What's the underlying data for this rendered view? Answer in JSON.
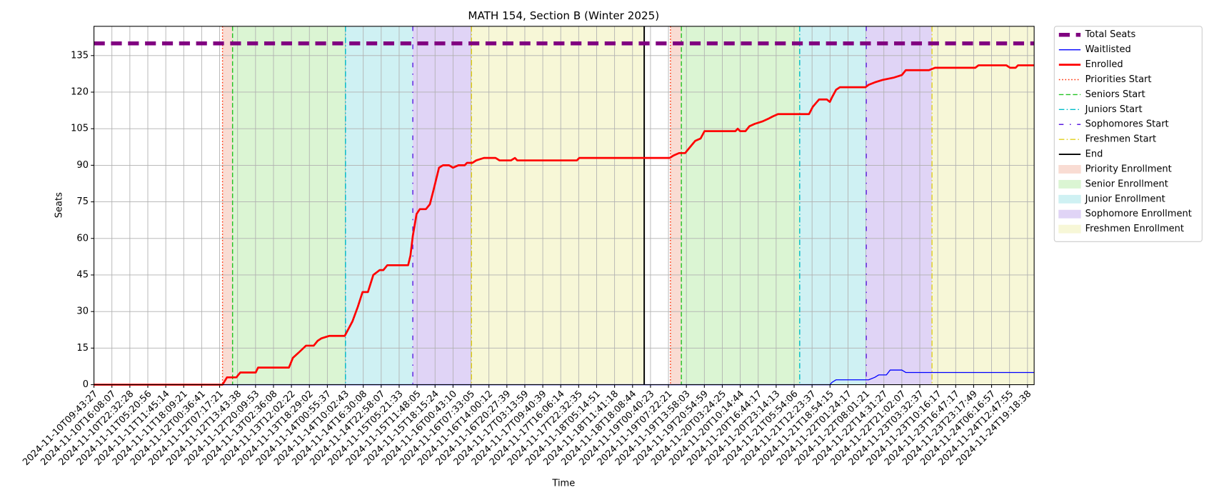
{
  "chart_data": {
    "type": "line",
    "title": "MATH 154, Section B (Winter 2025)",
    "x_label": "Time",
    "y_label": "Seats",
    "xlim": [
      0,
      52.37
    ],
    "ylim": [
      0,
      147
    ],
    "yticks": [
      0,
      15,
      30,
      45,
      60,
      75,
      90,
      105,
      120,
      135
    ],
    "xticks": [
      {
        "value": 0,
        "label": "2024-11-10T09:43:27"
      },
      {
        "value": 1,
        "label": "2024-11-10T16:08:07"
      },
      {
        "value": 2,
        "label": "2024-11-10T22:32:28"
      },
      {
        "value": 3,
        "label": "2024-11-11T05:20:56"
      },
      {
        "value": 4,
        "label": "2024-11-11T11:45:14"
      },
      {
        "value": 5,
        "label": "2024-11-11T18:09:21"
      },
      {
        "value": 6,
        "label": "2024-11-12T00:36:41"
      },
      {
        "value": 7,
        "label": "2024-11-12T07:17:21"
      },
      {
        "value": 8,
        "label": "2024-11-12T13:43:38"
      },
      {
        "value": 9,
        "label": "2024-11-12T20:09:53"
      },
      {
        "value": 10,
        "label": "2024-11-13T02:36:08"
      },
      {
        "value": 11,
        "label": "2024-11-13T12:02:22"
      },
      {
        "value": 12,
        "label": "2024-11-13T18:29:02"
      },
      {
        "value": 13,
        "label": "2024-11-14T00:55:37"
      },
      {
        "value": 14,
        "label": "2024-11-14T10:02:43"
      },
      {
        "value": 15,
        "label": "2024-11-14T16:30:08"
      },
      {
        "value": 16,
        "label": "2024-11-14T22:58:07"
      },
      {
        "value": 17,
        "label": "2024-11-15T05:21:33"
      },
      {
        "value": 18,
        "label": "2024-11-15T11:48:05"
      },
      {
        "value": 19,
        "label": "2024-11-15T18:15:24"
      },
      {
        "value": 20,
        "label": "2024-11-16T00:43:10"
      },
      {
        "value": 21,
        "label": "2024-11-16T07:33:05"
      },
      {
        "value": 22,
        "label": "2024-11-16T14:00:12"
      },
      {
        "value": 23,
        "label": "2024-11-16T20:27:39"
      },
      {
        "value": 24,
        "label": "2024-11-17T03:13:59"
      },
      {
        "value": 25,
        "label": "2024-11-17T09:40:39"
      },
      {
        "value": 26,
        "label": "2024-11-17T16:06:14"
      },
      {
        "value": 27,
        "label": "2024-11-17T22:32:35"
      },
      {
        "value": 28,
        "label": "2024-11-18T05:14:51"
      },
      {
        "value": 29,
        "label": "2024-11-18T11:41:18"
      },
      {
        "value": 30,
        "label": "2024-11-18T18:08:44"
      },
      {
        "value": 31,
        "label": "2024-11-19T00:40:23"
      },
      {
        "value": 32,
        "label": "2024-11-19T07:22:21"
      },
      {
        "value": 33,
        "label": "2024-11-19T13:58:03"
      },
      {
        "value": 34,
        "label": "2024-11-19T20:54:59"
      },
      {
        "value": 35,
        "label": "2024-11-20T03:24:25"
      },
      {
        "value": 36,
        "label": "2024-11-20T10:14:44"
      },
      {
        "value": 37,
        "label": "2024-11-20T16:44:17"
      },
      {
        "value": 38,
        "label": "2024-11-20T23:14:13"
      },
      {
        "value": 39,
        "label": "2024-11-21T05:54:06"
      },
      {
        "value": 40,
        "label": "2024-11-21T12:23:37"
      },
      {
        "value": 41,
        "label": "2024-11-21T18:54:15"
      },
      {
        "value": 42,
        "label": "2024-11-22T01:24:17"
      },
      {
        "value": 43,
        "label": "2024-11-22T08:01:21"
      },
      {
        "value": 44,
        "label": "2024-11-22T14:31:27"
      },
      {
        "value": 45,
        "label": "2024-11-22T21:02:07"
      },
      {
        "value": 46,
        "label": "2024-11-23T03:32:37"
      },
      {
        "value": 47,
        "label": "2024-11-23T10:16:17"
      },
      {
        "value": 48,
        "label": "2024-11-23T16:47:17"
      },
      {
        "value": 49,
        "label": "2024-11-23T23:17:49"
      },
      {
        "value": 50,
        "label": "2024-11-24T06:16:57"
      },
      {
        "value": 51,
        "label": "2024-11-24T12:47:55"
      },
      {
        "value": 52,
        "label": "2024-11-24T19:18:38"
      }
    ],
    "grid": true,
    "legend": "outside-upper-right",
    "regions": [
      {
        "name": "Priority Enrollment",
        "color": "#f9dcd3",
        "spans": [
          [
            7.16,
            7.72
          ],
          [
            32.11,
            32.72
          ]
        ]
      },
      {
        "name": "Senior Enrollment",
        "color": "#dbf5d3",
        "spans": [
          [
            7.72,
            14.01
          ],
          [
            32.72,
            39.31
          ]
        ]
      },
      {
        "name": "Junior Enrollment",
        "color": "#cff1f3",
        "spans": [
          [
            14.01,
            17.76
          ],
          [
            39.31,
            43.02
          ]
        ]
      },
      {
        "name": "Sophomore Enrollment",
        "color": "#e0d4f6",
        "spans": [
          [
            17.76,
            21.03
          ],
          [
            43.02,
            46.68
          ]
        ]
      },
      {
        "name": "Freshmen Enrollment",
        "color": "#f7f7d7",
        "spans": [
          [
            21.03,
            30.65
          ],
          [
            46.68,
            52.37
          ]
        ]
      }
    ],
    "vlines": [
      {
        "name": "Priorities Start",
        "color": "#ff2a00",
        "style": "dotted",
        "x": [
          7.16,
          32.11
        ]
      },
      {
        "name": "Seniors Start",
        "color": "#22c322",
        "style": "dashed",
        "x": [
          7.72,
          32.72
        ]
      },
      {
        "name": "Juniors Start",
        "color": "#00bcc8",
        "style": "dashdot",
        "x": [
          14.01,
          39.31
        ]
      },
      {
        "name": "Sophomores Start",
        "color": "#5a1ae0",
        "style": "loosedashdot",
        "x": [
          17.76,
          43.02
        ]
      },
      {
        "name": "Freshmen Start",
        "color": "#e0cf1a",
        "style": "dashdot",
        "x": [
          21.03,
          46.68
        ]
      },
      {
        "name": "End",
        "color": "#000000",
        "style": "solid",
        "x": [
          30.65
        ]
      }
    ],
    "series": [
      {
        "name": "Total Seats",
        "color": "#800080",
        "style": "thickdashed",
        "x": [
          0,
          52.37
        ],
        "values": [
          140,
          140
        ]
      },
      {
        "name": "Waitlisted",
        "color": "#0000ff",
        "style": "thin",
        "x": [
          0,
          40.99,
          41.12,
          41.34,
          43.15,
          43.49,
          43.71,
          44.14,
          44.35,
          45.0,
          45.22,
          52.37
        ],
        "values": [
          0,
          0,
          1,
          2,
          2,
          3,
          4,
          4,
          6,
          6,
          5,
          5
        ]
      },
      {
        "name": "Enrolled",
        "color": "#ff0000",
        "style": "thick",
        "x": [
          0,
          7.16,
          7.41,
          7.93,
          8.15,
          9.01,
          9.14,
          10.86,
          11.08,
          11.38,
          11.81,
          12.24,
          12.46,
          12.67,
          13.1,
          13.97,
          14.4,
          14.7,
          14.96,
          15.26,
          15.56,
          15.91,
          16.12,
          16.34,
          17.5,
          17.63,
          17.76,
          17.97,
          18.15,
          18.49,
          18.71,
          18.92,
          19.22,
          19.44,
          19.78,
          20.0,
          20.3,
          20.65,
          20.78,
          21.08,
          21.29,
          21.72,
          22.37,
          22.59,
          23.23,
          23.45,
          23.58,
          26.9,
          27.03,
          32.07,
          32.28,
          32.59,
          32.93,
          33.15,
          33.49,
          33.79,
          34.01,
          35.73,
          35.86,
          35.99,
          36.29,
          36.51,
          36.81,
          37.24,
          37.54,
          37.8,
          38.1,
          39.83,
          40.04,
          40.39,
          40.82,
          40.99,
          41.12,
          41.34,
          41.55,
          42.97,
          43.15,
          43.49,
          43.92,
          44.57,
          45.0,
          45.22,
          46.51,
          46.85,
          49.09,
          49.27,
          50.82,
          51.03,
          51.34,
          51.47,
          52.37
        ],
        "values": [
          0,
          0,
          3,
          3,
          5,
          5,
          7,
          7,
          11,
          13,
          16,
          16,
          18,
          19,
          20,
          20,
          26,
          32,
          38,
          38,
          45,
          47,
          47,
          49,
          49,
          53,
          61,
          70,
          72,
          72,
          74,
          80,
          89,
          90,
          90,
          89,
          90,
          90,
          91,
          91,
          92,
          93,
          93,
          92,
          92,
          93,
          92,
          92,
          93,
          93,
          94,
          95,
          95,
          97,
          100,
          101,
          104,
          104,
          105,
          104,
          104,
          106,
          107,
          108,
          109,
          110,
          111,
          111,
          114,
          117,
          117,
          116,
          118,
          121,
          122,
          122,
          123,
          124,
          125,
          126,
          127,
          129,
          129,
          130,
          130,
          131,
          131,
          130,
          130,
          131,
          131
        ]
      }
    ]
  }
}
